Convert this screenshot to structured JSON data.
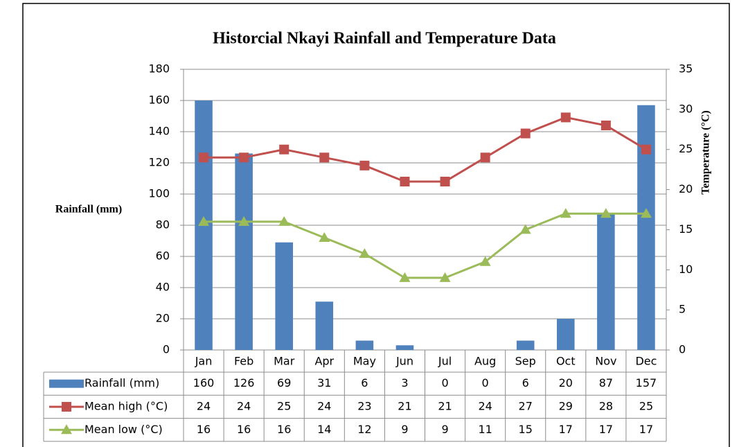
{
  "chart_data": {
    "type": "bar",
    "title": "Historcial Nkayi Rainfall and Temperature Data",
    "y_label": "Rainfall (mm)",
    "y2_label": "Temperature (°C)",
    "categories": [
      "Jan",
      "Feb",
      "Mar",
      "Apr",
      "May",
      "Jun",
      "Jul",
      "Aug",
      "Sep",
      "Oct",
      "Nov",
      "Dec"
    ],
    "series": [
      {
        "name": "Rainfall (mm)",
        "type": "bar",
        "color": "#4f81bd",
        "values": [
          160,
          126,
          69,
          31,
          6,
          3,
          0,
          0,
          6,
          20,
          87,
          157
        ]
      },
      {
        "name": "Mean high (°C)",
        "type": "line",
        "marker": "square",
        "axis": "y2",
        "color": "#c0504d",
        "values": [
          24,
          24,
          25,
          24,
          23,
          21,
          21,
          24,
          27,
          29,
          28,
          25
        ]
      },
      {
        "name": "Mean low (°C)",
        "type": "line",
        "marker": "triangle",
        "axis": "y2",
        "color": "#9bbb59",
        "values": [
          16,
          16,
          16,
          14,
          12,
          9,
          9,
          11,
          15,
          17,
          17,
          17
        ]
      }
    ],
    "ylim": [
      0,
      180
    ],
    "yticks": [
      0,
      20,
      40,
      60,
      80,
      100,
      120,
      140,
      160,
      180
    ],
    "y2lim": [
      0,
      35
    ],
    "y2ticks": [
      0,
      5,
      10,
      15,
      20,
      25,
      30,
      35
    ],
    "grid": true,
    "data_table": true
  }
}
